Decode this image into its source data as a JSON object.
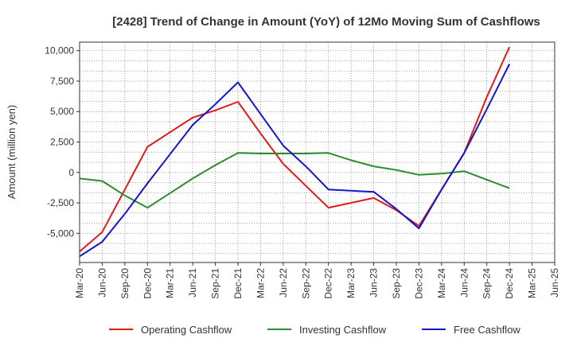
{
  "chart_data": {
    "type": "line",
    "title": "[2428]  Trend of Change in Amount (YoY) of 12Mo Moving Sum of Cashflows",
    "xlabel": "",
    "ylabel": "Amount (million yen)",
    "ylim": [
      -7400,
      10700
    ],
    "yticks": [
      10000,
      7500,
      5000,
      2500,
      0,
      -2500,
      -5000
    ],
    "ytick_labels": [
      "10,000",
      "7,500",
      "5,000",
      "2,500",
      "0",
      "-2,500",
      "-5,000"
    ],
    "categories": [
      "Mar-20",
      "Jun-20",
      "Sep-20",
      "Dec-20",
      "Mar-21",
      "Jun-21",
      "Sep-21",
      "Dec-21",
      "Mar-22",
      "Jun-22",
      "Sep-22",
      "Dec-22",
      "Mar-23",
      "Jun-23",
      "Sep-23",
      "Dec-23",
      "Mar-24",
      "Jun-24",
      "Sep-24",
      "Dec-24",
      "Mar-25",
      "Jun-25"
    ],
    "grid": true,
    "legend_position": "bottom",
    "series": [
      {
        "name": "Operating Cashflow",
        "color": "#e31a1c",
        "values": [
          -6500,
          -4900,
          -1400,
          2100,
          3300,
          4500,
          5100,
          5800,
          3200,
          700,
          -1100,
          -2900,
          -2500,
          -2100,
          -3100,
          -4400,
          -1400,
          1600,
          6200,
          10300,
          null,
          null
        ]
      },
      {
        "name": "Investing Cashflow",
        "color": "#2e8b2e",
        "values": [
          -500,
          -700,
          -1900,
          -2900,
          -1700,
          -500,
          600,
          1600,
          1550,
          1550,
          1550,
          1600,
          1000,
          500,
          200,
          -200,
          -100,
          100,
          -600,
          -1300,
          null,
          null
        ]
      },
      {
        "name": "Free Cashflow",
        "color": "#1515c8",
        "values": [
          -6900,
          -5700,
          -3400,
          -900,
          1500,
          3900,
          5600,
          7400,
          4800,
          2200,
          500,
          -1400,
          -1500,
          -1600,
          -3000,
          -4600,
          -1400,
          1600,
          5200,
          8900,
          null,
          null
        ]
      }
    ]
  }
}
